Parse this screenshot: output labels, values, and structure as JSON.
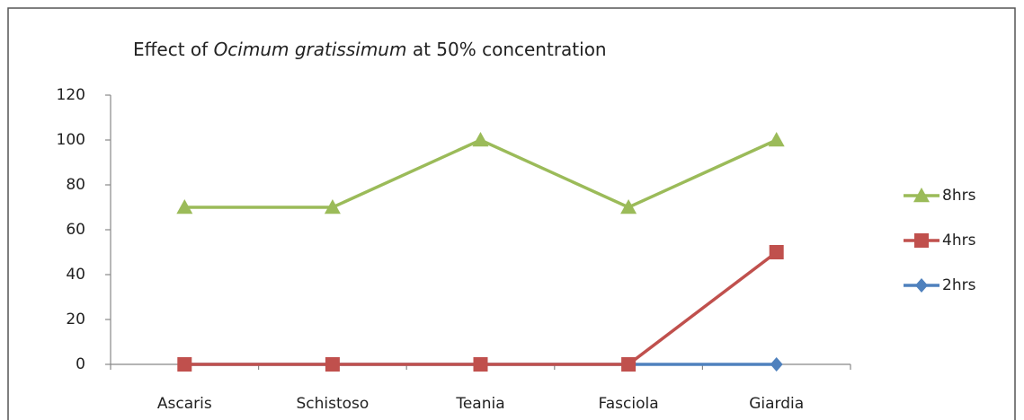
{
  "chart_data": {
    "type": "line",
    "title": [
      "Effect of",
      "Ocimum gratissimum",
      "at 50% concentration"
    ],
    "categories": [
      "Ascaris",
      "Schistoso",
      "Teania",
      "Fasciola",
      "Giardia"
    ],
    "series": [
      {
        "name": "8hrs",
        "color": "#9bbb59",
        "marker": "triangle",
        "values": [
          70,
          70,
          100,
          70,
          100
        ]
      },
      {
        "name": "4hrs",
        "color": "#c0504d",
        "marker": "square",
        "values": [
          0,
          0,
          0,
          0,
          50
        ]
      },
      {
        "name": "2hrs",
        "color": "#4f81bd",
        "marker": "diamond",
        "values": [
          0,
          0,
          0,
          0,
          0
        ]
      }
    ],
    "ylim": [
      0,
      120
    ],
    "yticks": [
      0,
      20,
      40,
      60,
      80,
      100,
      120
    ],
    "grid": false,
    "legend": "right"
  }
}
